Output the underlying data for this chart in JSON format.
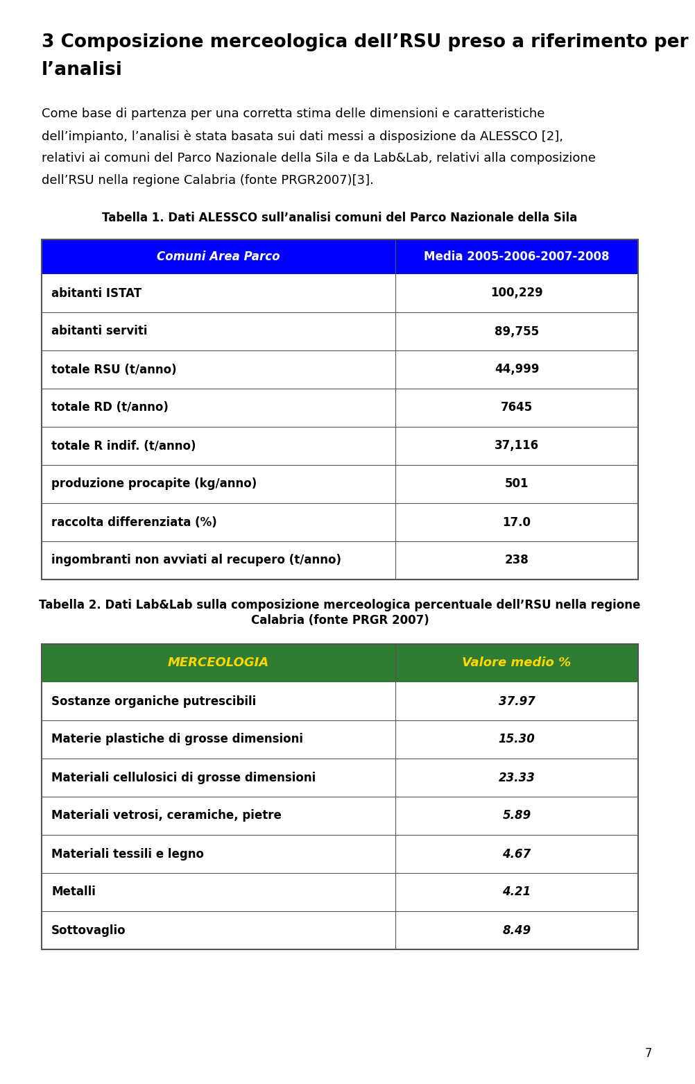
{
  "heading_line1": "3 Composizione merceologica dell’RSU preso a riferimento per",
  "heading_line2": "l’analisi",
  "body_lines": [
    "Come base di partenza per una corretta stima delle dimensioni e caratteristiche",
    "dell’impianto, l’analisi è stata basata sui dati messi a disposizione da ALESSCO [2],",
    "relativi ai comuni del Parco Nazionale della Sila e da Lab&Lab, relativi alla composizione",
    "dell’RSU nella regione Calabria (fonte PRGR2007)[3]."
  ],
  "tabella1_caption": "Tabella 1. Dati ALESSCO sull’analisi comuni del Parco Nazionale della Sila",
  "tabella1_header": [
    "Comuni Area Parco",
    "Media 2005-2006-2007-2008"
  ],
  "tabella1_header_bg": "#0000FF",
  "tabella1_header_color": "#FFFFFF",
  "tabella1_rows": [
    [
      "abitanti ISTAT",
      "100,229"
    ],
    [
      "abitanti serviti",
      "89,755"
    ],
    [
      "totale RSU (t/anno)",
      "44,999"
    ],
    [
      "totale RD (t/anno)",
      "7645"
    ],
    [
      "totale R indif. (t/anno)",
      "37,116"
    ],
    [
      "produzione procapite (kg/anno)",
      "501"
    ],
    [
      "raccolta differenziata (%)",
      "17.0"
    ],
    [
      "ingombranti non avviati al recupero (t/anno)",
      "238"
    ]
  ],
  "tabella2_caption_line1": "Tabella 2. Dati Lab&Lab sulla composizione merceologica percentuale dell’RSU nella regione",
  "tabella2_caption_line2": "Calabria (fonte PRGR 2007)",
  "tabella2_header": [
    "MERCEOLOGIA",
    "Valore medio %"
  ],
  "tabella2_header_bg": "#2E7D32",
  "tabella2_header_color": "#FFD700",
  "tabella2_rows": [
    [
      "Sostanze organiche putrescibili",
      "37.97"
    ],
    [
      "Materie plastiche di grosse dimensioni",
      "15.30"
    ],
    [
      "Materiali cellulosici di grosse dimensioni",
      "23.33"
    ],
    [
      "Materiali vetrosi, ceramiche, pietre",
      "5.89"
    ],
    [
      "Materiali tessili e legno",
      "4.67"
    ],
    [
      "Metalli",
      "4.21"
    ],
    [
      "Sottovaglio",
      "8.49"
    ]
  ],
  "page_number": "7",
  "bg_color": "#FFFFFF",
  "text_color": "#000000",
  "border_color": "#555555"
}
